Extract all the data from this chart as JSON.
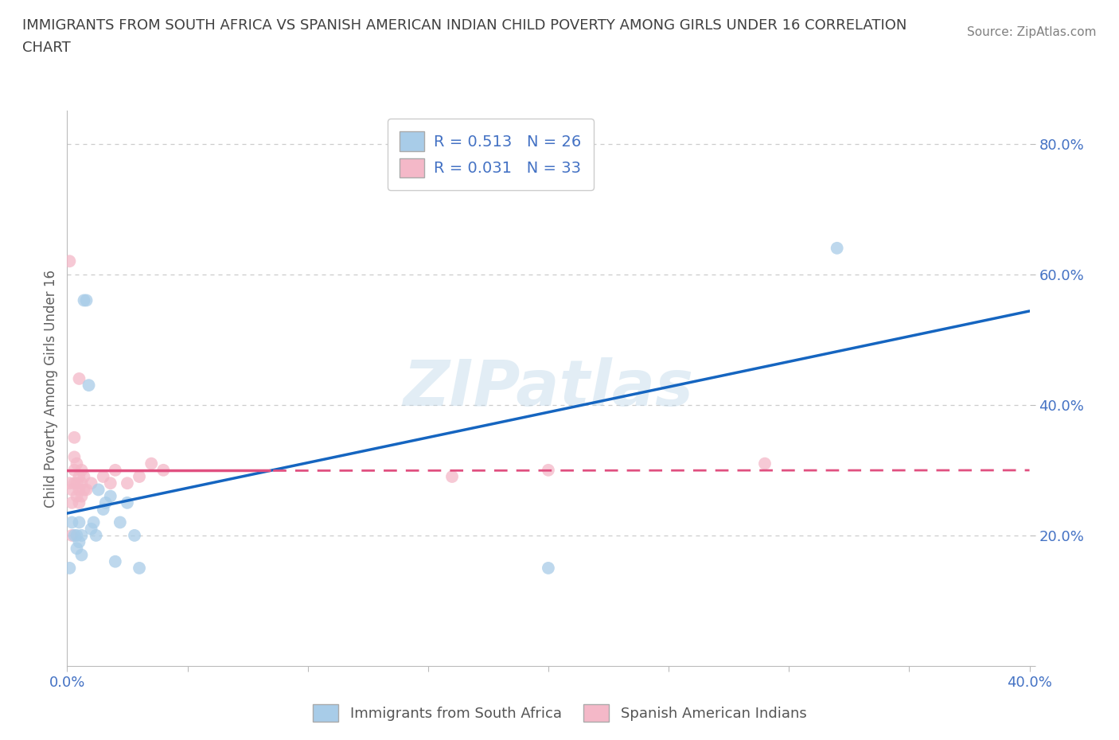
{
  "title_line1": "IMMIGRANTS FROM SOUTH AFRICA VS SPANISH AMERICAN INDIAN CHILD POVERTY AMONG GIRLS UNDER 16 CORRELATION",
  "title_line2": "CHART",
  "source": "Source: ZipAtlas.com",
  "ylabel": "Child Poverty Among Girls Under 16",
  "xlim": [
    0.0,
    0.4
  ],
  "ylim": [
    0.0,
    0.85
  ],
  "xticks": [
    0.0,
    0.05,
    0.1,
    0.15,
    0.2,
    0.25,
    0.3,
    0.35,
    0.4
  ],
  "xticklabels": [
    "0.0%",
    "",
    "",
    "",
    "",
    "",
    "",
    "",
    "40.0%"
  ],
  "ytick_positions": [
    0.0,
    0.2,
    0.4,
    0.6,
    0.8
  ],
  "ytick_labels": [
    "",
    "20.0%",
    "40.0%",
    "60.0%",
    "80.0%"
  ],
  "watermark": "ZIPatlas",
  "blue_color": "#a8cce8",
  "pink_color": "#f4b8c8",
  "blue_line_color": "#1565C0",
  "pink_line_color": "#e05080",
  "R_blue": 0.513,
  "N_blue": 26,
  "R_pink": 0.031,
  "N_pink": 33,
  "blue_scatter_x": [
    0.001,
    0.002,
    0.003,
    0.004,
    0.004,
    0.005,
    0.005,
    0.006,
    0.006,
    0.007,
    0.008,
    0.009,
    0.01,
    0.011,
    0.012,
    0.013,
    0.015,
    0.016,
    0.018,
    0.02,
    0.022,
    0.025,
    0.028,
    0.03,
    0.2,
    0.32
  ],
  "blue_scatter_y": [
    0.15,
    0.22,
    0.2,
    0.18,
    0.2,
    0.19,
    0.22,
    0.17,
    0.2,
    0.56,
    0.56,
    0.43,
    0.21,
    0.22,
    0.2,
    0.27,
    0.24,
    0.25,
    0.26,
    0.16,
    0.22,
    0.25,
    0.2,
    0.15,
    0.15,
    0.64
  ],
  "pink_scatter_x": [
    0.001,
    0.001,
    0.002,
    0.002,
    0.002,
    0.003,
    0.003,
    0.003,
    0.003,
    0.004,
    0.004,
    0.004,
    0.005,
    0.005,
    0.005,
    0.005,
    0.006,
    0.006,
    0.006,
    0.007,
    0.007,
    0.008,
    0.01,
    0.015,
    0.018,
    0.02,
    0.025,
    0.03,
    0.035,
    0.04,
    0.16,
    0.2,
    0.29
  ],
  "pink_scatter_y": [
    0.28,
    0.62,
    0.2,
    0.25,
    0.27,
    0.28,
    0.3,
    0.32,
    0.35,
    0.26,
    0.28,
    0.31,
    0.25,
    0.27,
    0.29,
    0.44,
    0.26,
    0.28,
    0.3,
    0.27,
    0.29,
    0.27,
    0.28,
    0.29,
    0.28,
    0.3,
    0.28,
    0.29,
    0.31,
    0.3,
    0.29,
    0.3,
    0.31
  ],
  "background_color": "#ffffff",
  "grid_color": "#cccccc",
  "tick_label_color": "#4472C4",
  "title_color": "#404040",
  "source_color": "#808080",
  "ylabel_color": "#606060"
}
